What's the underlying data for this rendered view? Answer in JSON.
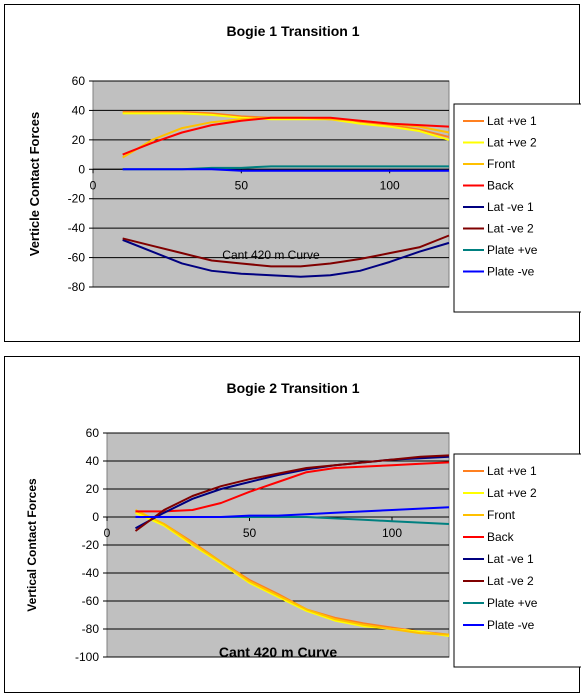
{
  "charts": [
    {
      "type": "line",
      "title": "Bogie 1 Transition 1",
      "ylabel": "Verticle Contact Forces",
      "xlabel": "Cant 420 m Curve",
      "ylim": [
        -80,
        60
      ],
      "yticks": [
        60,
        40,
        20,
        0,
        -20,
        -40,
        -60,
        -80
      ],
      "xlim": [
        0,
        120
      ],
      "xticks": [
        0,
        50,
        100
      ],
      "grid": true,
      "legend_position": "right",
      "plot_background": "#c0c0c0",
      "x": [
        10,
        20,
        30,
        40,
        50,
        60,
        70,
        80,
        90,
        100,
        110,
        120
      ],
      "series": [
        {
          "name": "Lat +ve 1",
          "color": "#ff8020",
          "values": [
            39,
            39,
            39,
            38,
            36,
            35,
            35,
            34,
            32,
            30,
            27,
            22
          ]
        },
        {
          "name": "Lat +ve 2",
          "color": "#ffff00",
          "values": [
            38,
            38,
            38,
            37,
            35,
            34,
            34,
            34,
            31,
            29,
            26,
            20
          ]
        },
        {
          "name": "Front",
          "color": "#ffc000",
          "values": [
            8,
            20,
            28,
            32,
            34,
            35,
            35,
            34,
            33,
            31,
            29,
            25
          ]
        },
        {
          "name": "Back",
          "color": "#ff0000",
          "values": [
            10,
            18,
            25,
            30,
            33,
            35,
            35,
            35,
            33,
            31,
            30,
            29
          ]
        },
        {
          "name": "Lat -ve 1",
          "color": "#000080",
          "values": [
            -48,
            -56,
            -64,
            -69,
            -71,
            -72,
            -73,
            -72,
            -69,
            -63,
            -56,
            -50
          ]
        },
        {
          "name": "Lat -ve 2",
          "color": "#800000",
          "values": [
            -47,
            -52,
            -57,
            -62,
            -64,
            -66,
            -66,
            -64,
            -61,
            -57,
            -53,
            -45
          ]
        },
        {
          "name": "Plate +ve",
          "color": "#008080",
          "values": [
            0,
            0,
            0,
            1,
            1,
            2,
            2,
            2,
            2,
            2,
            2,
            2
          ]
        },
        {
          "name": "Plate -ve",
          "color": "#0000ff",
          "values": [
            0,
            0,
            0,
            0,
            -1,
            -1,
            -1,
            -1,
            -1,
            -1,
            -1,
            -1
          ]
        }
      ]
    },
    {
      "type": "line",
      "title": "Bogie 2 Transition 1",
      "ylabel": "Vertical Contact Forces",
      "xlabel": "Cant 420 m Curve",
      "ylim": [
        -100,
        60
      ],
      "yticks": [
        60,
        40,
        20,
        0,
        -20,
        -40,
        -60,
        -80,
        -100
      ],
      "xlim": [
        0,
        120
      ],
      "xticks": [
        0,
        50,
        100
      ],
      "grid": true,
      "legend_position": "right",
      "plot_background": "#c0c0c0",
      "x": [
        10,
        20,
        30,
        40,
        50,
        60,
        70,
        80,
        90,
        100,
        110,
        120
      ],
      "series": [
        {
          "name": "Lat +ve 1",
          "color": "#ff8020",
          "values": [
            4,
            -5,
            -18,
            -32,
            -45,
            -55,
            -66,
            -72,
            -76,
            -79,
            -82,
            -84
          ]
        },
        {
          "name": "Lat +ve 2",
          "color": "#ffff00",
          "values": [
            3,
            -6,
            -20,
            -33,
            -47,
            -57,
            -67,
            -74,
            -78,
            -80,
            -82,
            -85
          ]
        },
        {
          "name": "Front",
          "color": "#ffc000",
          "values": [
            5,
            -5,
            -19,
            -32,
            -46,
            -56,
            -66,
            -73,
            -77,
            -80,
            -83,
            -84
          ]
        },
        {
          "name": "Back",
          "color": "#ff0000",
          "values": [
            4,
            4,
            5,
            10,
            18,
            25,
            32,
            35,
            36,
            37,
            38,
            39
          ]
        },
        {
          "name": "Lat -ve 1",
          "color": "#000080",
          "values": [
            -8,
            3,
            13,
            20,
            25,
            30,
            34,
            37,
            39,
            41,
            42,
            43
          ]
        },
        {
          "name": "Lat -ve 2",
          "color": "#800000",
          "values": [
            -10,
            5,
            15,
            22,
            27,
            31,
            35,
            37,
            39,
            41,
            43,
            44
          ]
        },
        {
          "name": "Plate +ve",
          "color": "#008080",
          "values": [
            0,
            0,
            0,
            0,
            0,
            0,
            0,
            -1,
            -2,
            -3,
            -4,
            -5
          ]
        },
        {
          "name": "Plate -ve",
          "color": "#0000ff",
          "values": [
            0,
            0,
            0,
            0,
            1,
            1,
            2,
            3,
            4,
            5,
            6,
            7
          ]
        }
      ]
    }
  ]
}
